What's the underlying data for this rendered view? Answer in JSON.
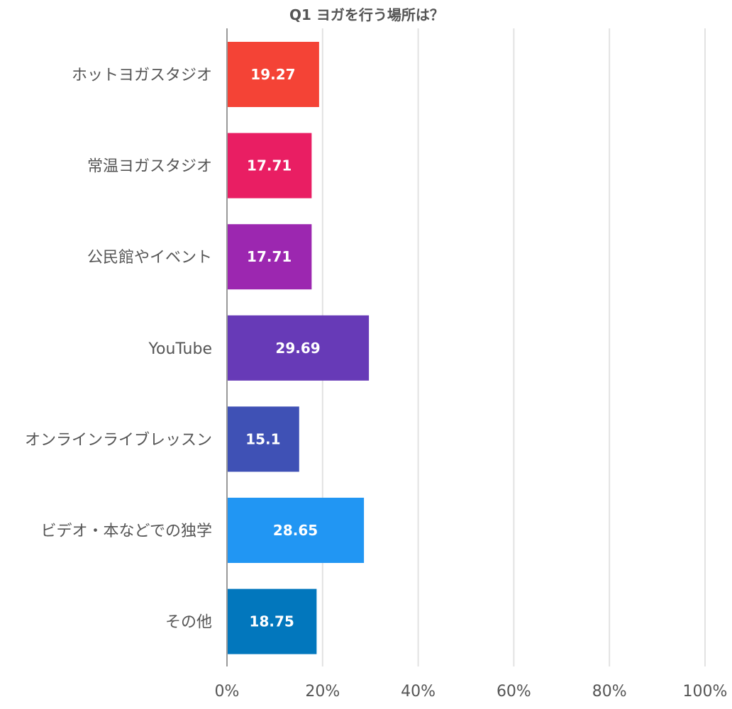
{
  "chart_data": {
    "type": "bar",
    "orientation": "horizontal",
    "title": "Q1 ヨガを行う場所は？",
    "categories": [
      "ホットヨガスタジオ",
      "常温ヨガスタジオ",
      "公民館やイベント",
      "YouTube",
      "オンラインライブレッスン",
      "ビデオ・本などでの独学",
      "その他"
    ],
    "values": [
      19.27,
      17.71,
      17.71,
      29.69,
      15.1,
      28.65,
      18.75
    ],
    "data_labels": [
      "19.27",
      "17.71",
      "17.71",
      "29.69",
      "15.1",
      "28.65",
      "18.75"
    ],
    "colors": [
      "#f44336",
      "#e91e63",
      "#9c27b0",
      "#673ab7",
      "#3f51b5",
      "#2196f3",
      "#0277bd"
    ],
    "xlim": [
      0,
      100
    ],
    "xticks": [
      0,
      20,
      40,
      60,
      80,
      100
    ],
    "xtick_labels": [
      "0%",
      "20%",
      "40%",
      "60%",
      "80%",
      "100%"
    ],
    "xlabel": "",
    "ylabel": "",
    "grid": true,
    "legend": "none"
  }
}
